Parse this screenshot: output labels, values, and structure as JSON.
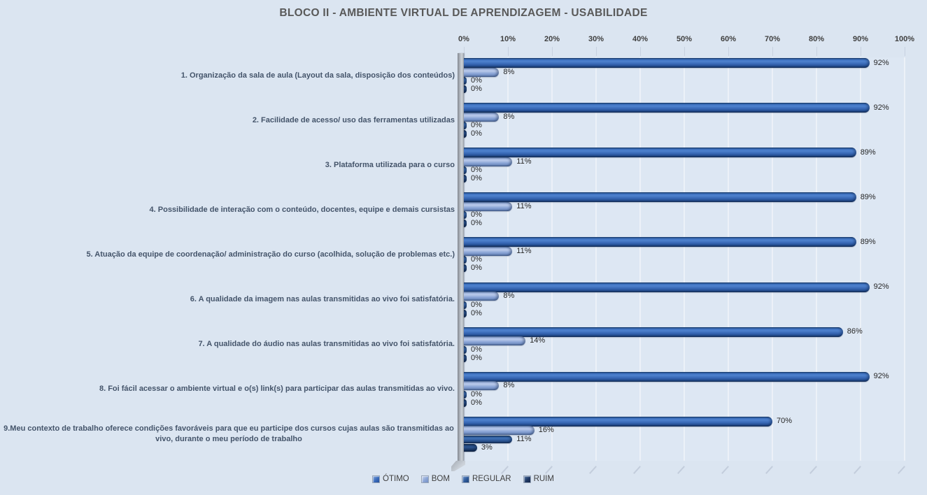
{
  "title": "BLOCO II - AMBIENTE VIRTUAL DE APRENDIZAGEM - USABILIDADE",
  "colors": {
    "background": "#dbe5f1",
    "plot_background": "#dde7f3",
    "title_text": "#595959",
    "category_text": "#44546a",
    "series": {
      "OTIMO": "#3a6bbd",
      "BOM": "#8ca6d7",
      "REGULAR": "#2f5b9c",
      "RUIM": "#1f3864"
    }
  },
  "chart_data": {
    "type": "bar",
    "orientation": "horizontal",
    "title": "BLOCO II - AMBIENTE VIRTUAL DE APRENDIZAGEM - USABILIDADE",
    "axis": {
      "position": "top",
      "min": 0,
      "max": 100,
      "ticks": [
        "0%",
        "10%",
        "20%",
        "30%",
        "40%",
        "50%",
        "60%",
        "70%",
        "80%",
        "90%",
        "100%"
      ]
    },
    "grid": true,
    "legend_position": "bottom",
    "data_labels": true,
    "categories": [
      "1. Organização da sala de aula (Layout da sala, disposição dos conteúdos)",
      "2. Facilidade de acesso/ uso das ferramentas utilizadas",
      "3. Plataforma utilizada para o curso",
      "4. Possibilidade de interação com o conteúdo, docentes, equipe e demais cursistas",
      "5. Atuação da equipe de coordenação/ administração do curso (acolhida, solução de problemas etc.)",
      "6. A qualidade da imagem nas aulas transmitidas ao vivo foi satisfatória.",
      "7. A qualidade do áudio nas aulas transmitidas ao vivo foi satisfatória.",
      "8. Foi fácil acessar o ambiente virtual e o(s) link(s) para participar das aulas transmitidas ao vivo.",
      "9.Meu contexto de trabalho oferece condições favoráveis para que eu participe dos cursos cujas aulas são transmitidas ao vivo, durante o meu período de trabalho"
    ],
    "series": [
      {
        "name": "ÓTIMO",
        "color": "#3a6bbd",
        "values": [
          92,
          92,
          89,
          89,
          89,
          92,
          86,
          92,
          70
        ],
        "labels": [
          "92%",
          "92%",
          "89%",
          "89%",
          "89%",
          "92%",
          "86%",
          "92%",
          "70%"
        ]
      },
      {
        "name": "BOM",
        "color": "#8ca6d7",
        "values": [
          8,
          8,
          11,
          11,
          11,
          8,
          14,
          8,
          16
        ],
        "labels": [
          "8%",
          "8%",
          "11%",
          "11%",
          "11%",
          "8%",
          "14%",
          "8%",
          "16%"
        ]
      },
      {
        "name": "REGULAR",
        "color": "#2f5b9c",
        "values": [
          0,
          0,
          0,
          0,
          0,
          0,
          0,
          0,
          11
        ],
        "labels": [
          "0%",
          "0%",
          "0%",
          "0%",
          "0%",
          "0%",
          "0%",
          "0%",
          "11%"
        ]
      },
      {
        "name": "RUIM",
        "color": "#1f3864",
        "values": [
          0,
          0,
          0,
          0,
          0,
          0,
          0,
          0,
          3
        ],
        "labels": [
          "0%",
          "0%",
          "0%",
          "0%",
          "0%",
          "0%",
          "0%",
          "0%",
          "3%"
        ]
      }
    ]
  }
}
